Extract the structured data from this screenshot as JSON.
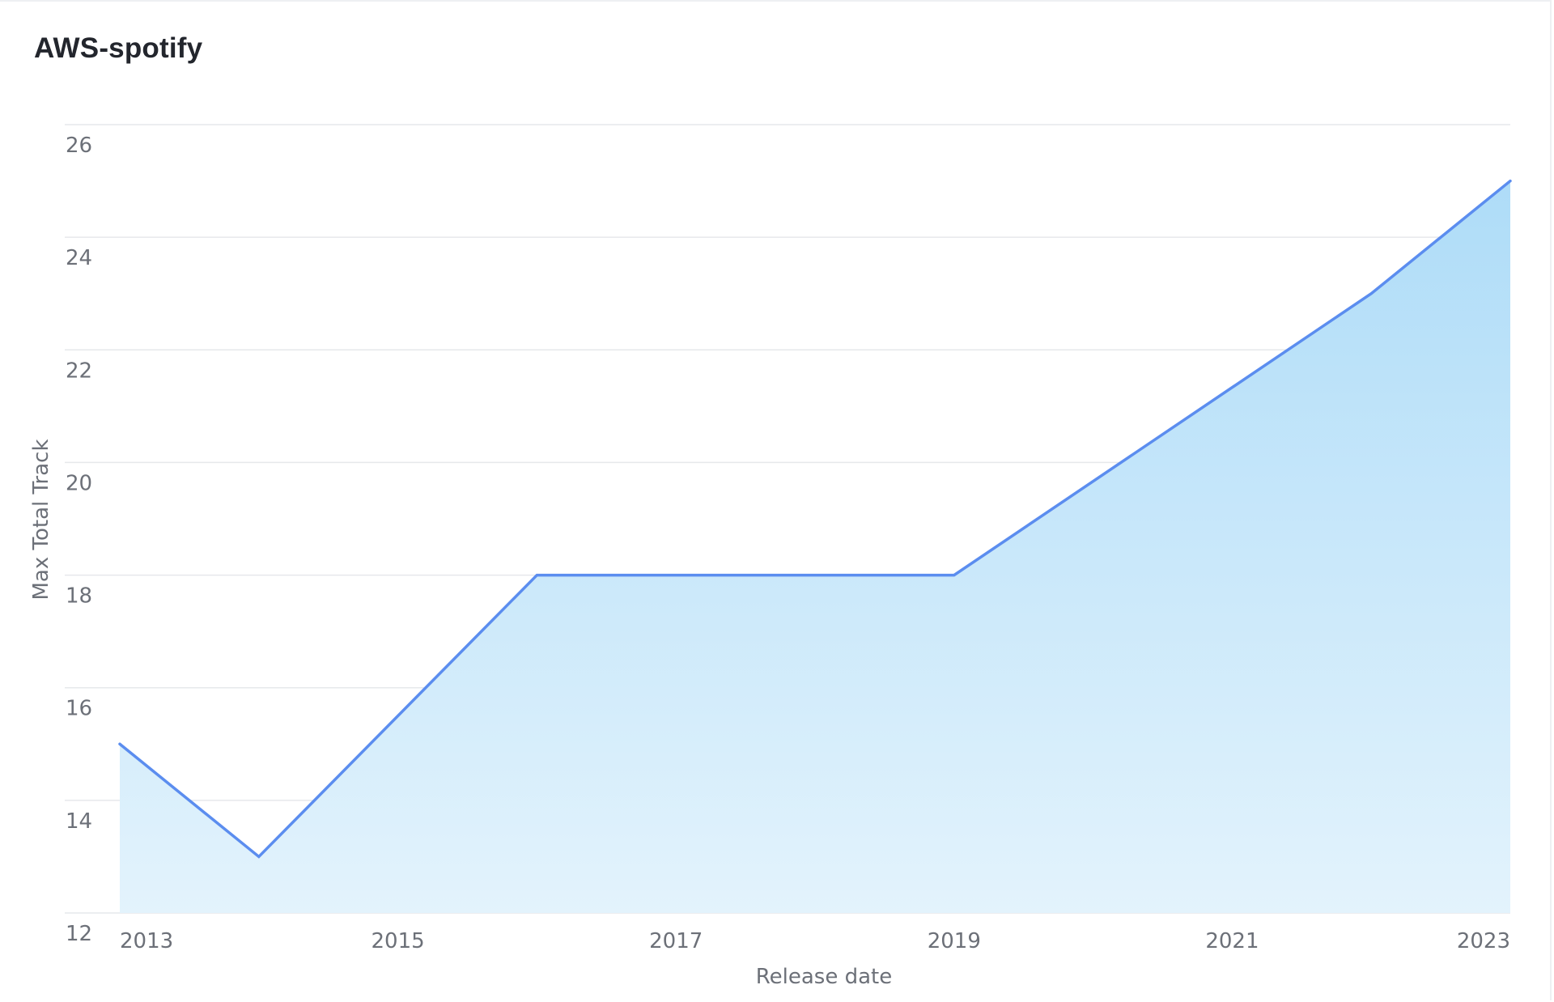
{
  "title": "AWS-spotify",
  "chart_data": {
    "type": "area",
    "title": "AWS-spotify",
    "xlabel": "Release date",
    "ylabel": "Max Total Track",
    "x": [
      2013,
      2014,
      2016,
      2019,
      2022,
      2023
    ],
    "series": [
      {
        "values": [
          15,
          13,
          18,
          18,
          23,
          25
        ]
      }
    ],
    "x_ticks": [
      "2013",
      "2015",
      "2017",
      "2019",
      "2021",
      "2023"
    ],
    "y_ticks": [
      "12",
      "14",
      "16",
      "18",
      "20",
      "22",
      "24",
      "26"
    ],
    "xlim": [
      2013,
      2023
    ],
    "ylim": [
      12,
      26
    ],
    "grid": true,
    "legend": "none",
    "colors": {
      "line": "#5b8def",
      "fill_top": "#aedcf8",
      "fill_bottom": "#e3f3fc",
      "grid": "#e6e8eb",
      "tick_text": "#6c7078",
      "title_text": "#23262d"
    }
  }
}
